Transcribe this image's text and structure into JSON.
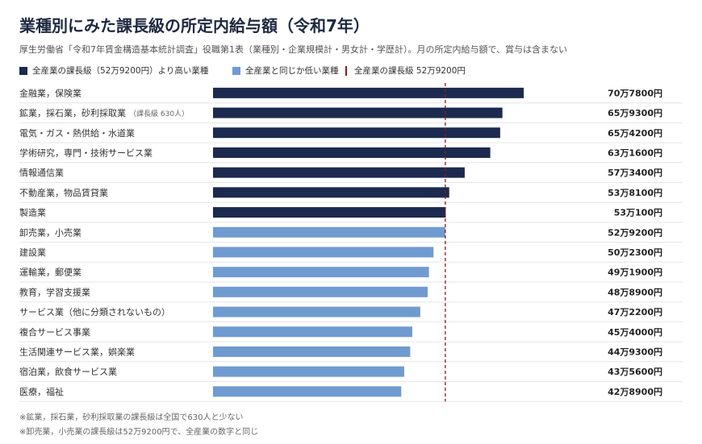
{
  "header": {
    "title": "業種別にみた課長級の所定内給与額（令和7年）",
    "subtitle": "厚生労働省「令和7年賃金構造基本統計調査」役職第1表（業種別・企業規模計・男女計・学歴計）。月の所定内給与額で、賞与は含まない"
  },
  "legend": {
    "above": "全産業の課長級（52万9200円）より高い業種",
    "below": "全産業と同じか低い業種",
    "reference": "全産業の課長級 52万9200円"
  },
  "colors": {
    "above": "#1b2a4e",
    "below": "#6f9bd1",
    "reference": "#8b1a1a"
  },
  "notes": [
    "※鉱業，採石業，砂利採取業の課長級は全国で630人と少ない",
    "※卸売業，小売業の課長級は52万9200円で、全産業の数字と同じ"
  ],
  "chart_data": {
    "type": "bar",
    "orientation": "horizontal",
    "unit": "円",
    "reference_value": 529200,
    "categories": [
      "金融業，保険業",
      "鉱業，採石業，砂利採取業",
      "電気・ガス・熱供給・水道業",
      "学術研究，専門・技術サービス業",
      "情報通信業",
      "不動産業，物品賃貸業",
      "製造業",
      "卸売業，小売業",
      "建設業",
      "運輸業，郵便業",
      "教育，学習支援業",
      "サービス業（他に分類されないもの）",
      "複合サービス事業",
      "生活関連サービス業，娯楽業",
      "宿泊業，飲食サービス業",
      "医療，福祉"
    ],
    "category_notes": [
      "",
      "（課長級 630人）",
      "",
      "",
      "",
      "",
      "",
      "",
      "",
      "",
      "",
      "",
      "",
      "",
      "",
      ""
    ],
    "values": [
      707800,
      659300,
      654200,
      631600,
      573400,
      538100,
      530100,
      529200,
      502300,
      491900,
      488900,
      472200,
      454000,
      449300,
      435600,
      428900
    ],
    "value_labels": [
      "70万7800円",
      "65万9300円",
      "65万4200円",
      "63万1600円",
      "57万3400円",
      "53万8100円",
      "53万100円",
      "52万9200円",
      "50万2300円",
      "49万1900円",
      "48万8900円",
      "47万2200円",
      "45万4000円",
      "44万9300円",
      "43万5600円",
      "42万8900円"
    ],
    "groups": [
      "above",
      "above",
      "above",
      "above",
      "above",
      "above",
      "above",
      "below",
      "below",
      "below",
      "below",
      "below",
      "below",
      "below",
      "below",
      "below"
    ],
    "xlim": [
      0,
      1300000
    ]
  }
}
